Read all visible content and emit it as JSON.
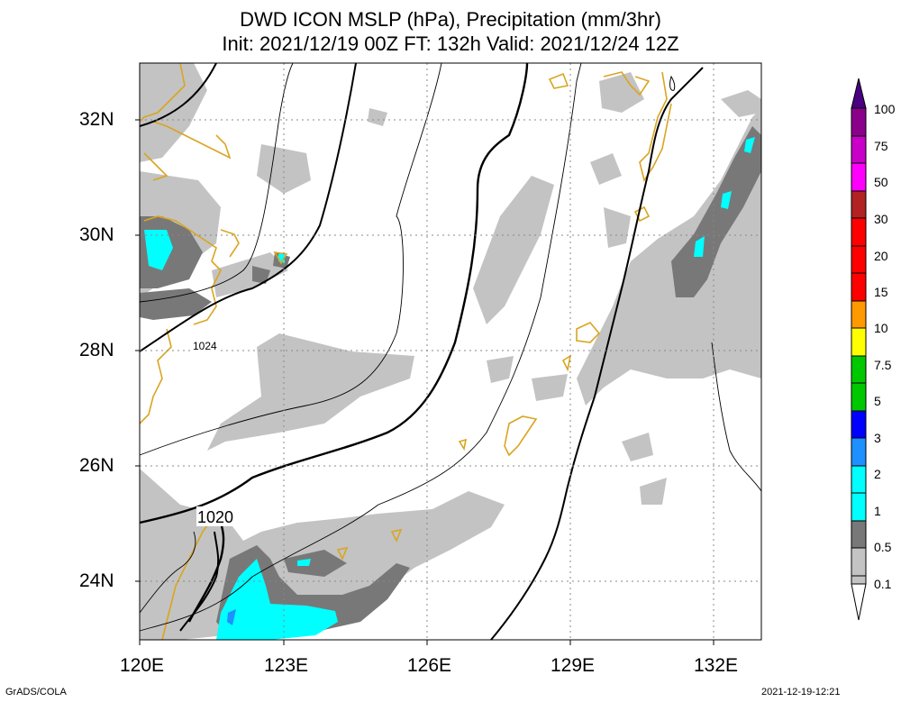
{
  "header": {
    "title_line1": "DWD ICON MSLP (hPa), Precipitation (mm/3hr)",
    "title_line2": "Init: 2021/12/19 00Z  FT: 132h  Valid: 2021/12/24 12Z"
  },
  "axes": {
    "lat_labels": [
      "32N",
      "30N",
      "28N",
      "26N",
      "24N"
    ],
    "lon_labels": [
      "120E",
      "123E",
      "126E",
      "129E",
      "132E"
    ]
  },
  "contour_labels": {
    "isobar_1024": "1024",
    "isobar_1020": "1020"
  },
  "colorbar": {
    "labels": [
      "100",
      "75",
      "50",
      "30",
      "20",
      "15",
      "10",
      "7.5",
      "5",
      "3",
      "2",
      "1",
      "0.5",
      "0.1"
    ],
    "colors": [
      "#a0a0a0",
      "#c3c3c3",
      "#787878",
      "#00ffff",
      "#1e90ff",
      "#0000ff",
      "#00c800",
      "#ffff00",
      "#ff9900",
      "#ff0000",
      "#b22222",
      "#ff00ff",
      "#c800c8",
      "#8b008b"
    ]
  },
  "footer": {
    "left": "GrADS/COLA",
    "right": "2021-12-19-12:21"
  }
}
